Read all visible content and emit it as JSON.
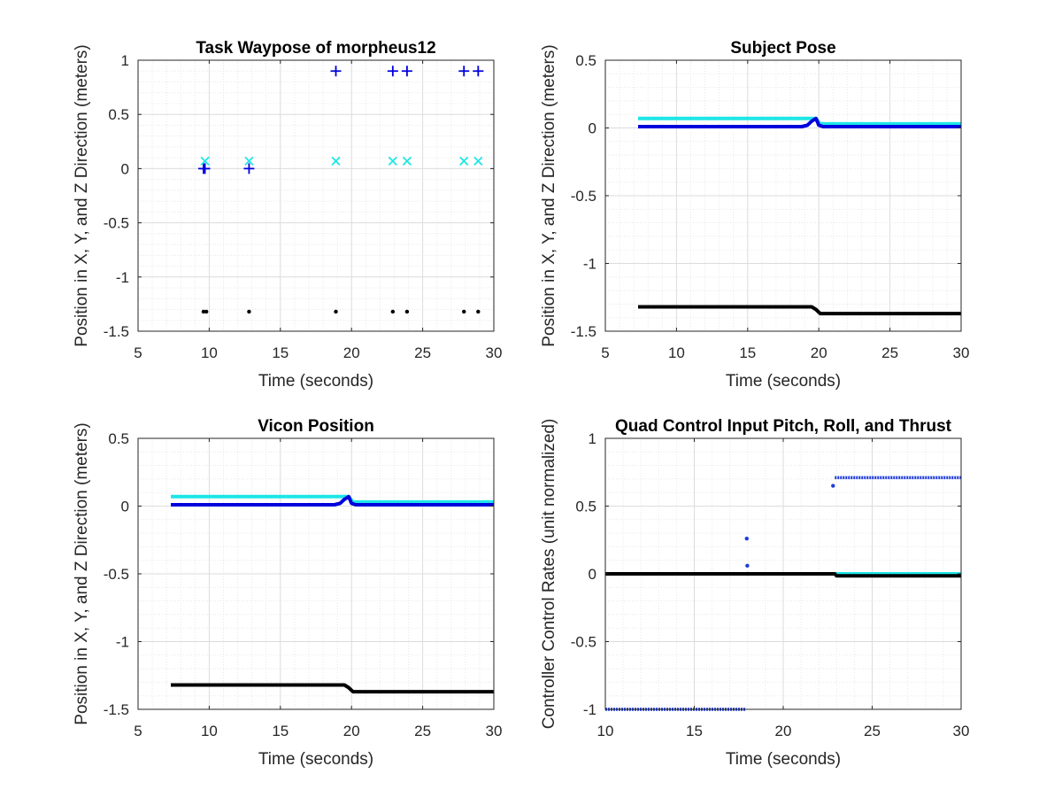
{
  "colors": {
    "axis": "#262626",
    "grid_major": "#dcdcdc",
    "grid_minor": "#e8e8e8",
    "cyan": "#1ee6e6",
    "blue": "#0000dc",
    "blue_points": "#1e3cdc",
    "black": "#000000"
  },
  "chart_data": [
    {
      "type": "scatter",
      "title": "Task Waypose of morpheus12",
      "xlabel": "Time (seconds)",
      "ylabel": "Position in X, Y, and Z Direction (meters)",
      "xlim": [
        5,
        30
      ],
      "ylim": [
        -1.5,
        1
      ],
      "xticks": [
        "5",
        "10",
        "15",
        "20",
        "25",
        "30"
      ],
      "yticks": [
        "1",
        "0.5",
        "0",
        "-0.5",
        "-1",
        "-1.5"
      ],
      "grid": true,
      "series": [
        {
          "marker": "+",
          "color": "blue",
          "x": [
            9.6,
            9.7,
            12.8,
            18.9,
            22.9,
            23.9,
            27.9,
            28.9
          ],
          "y": [
            0.0,
            0.0,
            0.0,
            0.9,
            0.9,
            0.9,
            0.9,
            0.9
          ]
        },
        {
          "marker": "x",
          "color": "cyan",
          "x": [
            9.7,
            12.8,
            18.9,
            22.9,
            23.9,
            27.9,
            28.9
          ],
          "y": [
            0.07,
            0.07,
            0.07,
            0.07,
            0.07,
            0.07,
            0.07
          ]
        },
        {
          "marker": ".",
          "color": "black",
          "x": [
            9.6,
            9.8,
            12.8,
            18.9,
            22.9,
            23.9,
            27.9,
            28.9
          ],
          "y": [
            -1.32,
            -1.32,
            -1.32,
            -1.32,
            -1.32,
            -1.32,
            -1.32,
            -1.32
          ]
        }
      ]
    },
    {
      "type": "line",
      "title": "Subject Pose",
      "xlabel": "Time (seconds)",
      "ylabel": "Position in X, Y, and Z Direction (meters)",
      "xlim": [
        5,
        30
      ],
      "ylim": [
        -1.5,
        0.5
      ],
      "xticks": [
        "5",
        "10",
        "15",
        "20",
        "25",
        "30"
      ],
      "yticks": [
        "0.5",
        "0",
        "-0.5",
        "-1",
        "-1.5"
      ],
      "grid": true,
      "series": [
        {
          "color": "cyan",
          "x": [
            7.3,
            19.5,
            19.8,
            20.1,
            30
          ],
          "y": [
            0.07,
            0.07,
            0.07,
            0.03,
            0.03
          ]
        },
        {
          "color": "blue",
          "x": [
            7.3,
            18.8,
            19.2,
            19.5,
            19.8,
            20.0,
            20.3,
            30
          ],
          "y": [
            0.01,
            0.01,
            0.02,
            0.05,
            0.07,
            0.02,
            0.01,
            0.01
          ]
        },
        {
          "color": "black",
          "x": [
            7.3,
            19.0,
            19.5,
            19.8,
            20.1,
            30
          ],
          "y": [
            -1.32,
            -1.32,
            -1.32,
            -1.34,
            -1.37,
            -1.37
          ]
        }
      ]
    },
    {
      "type": "line",
      "title": "Vicon Position",
      "xlabel": "Time (seconds)",
      "ylabel": "Position in X, Y, and Z Direction (meters)",
      "xlim": [
        5,
        30
      ],
      "ylim": [
        -1.5,
        0.5
      ],
      "xticks": [
        "5",
        "10",
        "15",
        "20",
        "25",
        "30"
      ],
      "yticks": [
        "0.5",
        "0",
        "-0.5",
        "-1",
        "-1.5"
      ],
      "grid": true,
      "series": [
        {
          "color": "cyan",
          "x": [
            7.3,
            19.5,
            19.8,
            20.1,
            30
          ],
          "y": [
            0.07,
            0.07,
            0.07,
            0.03,
            0.03
          ]
        },
        {
          "color": "blue",
          "x": [
            7.3,
            18.8,
            19.2,
            19.5,
            19.8,
            20.0,
            20.3,
            30
          ],
          "y": [
            0.01,
            0.01,
            0.02,
            0.05,
            0.07,
            0.02,
            0.01,
            0.01
          ]
        },
        {
          "color": "black",
          "x": [
            7.3,
            19.0,
            19.5,
            19.8,
            20.1,
            30
          ],
          "y": [
            -1.32,
            -1.32,
            -1.32,
            -1.34,
            -1.37,
            -1.37
          ]
        }
      ]
    },
    {
      "type": "scatter",
      "title": "Quad Control Input Pitch, Roll, and Thrust",
      "xlabel": "Time (seconds)",
      "ylabel": "Controller Control Rates (unit normalized)",
      "xlim": [
        10,
        30
      ],
      "ylim": [
        -1,
        1
      ],
      "xticks": [
        "10",
        "15",
        "20",
        "25",
        "30"
      ],
      "yticks": [
        "1",
        "0.5",
        "0",
        "-0.5",
        "-1"
      ],
      "grid": true,
      "series": [
        {
          "color": "cyan",
          "style": "line",
          "x": [
            10,
            22.9,
            30
          ],
          "y": [
            0,
            0,
            0
          ]
        },
        {
          "color": "blue_points",
          "style": "segments",
          "segments": [
            {
              "x": [
                10,
                17.9
              ],
              "y": [
                -1,
                -1
              ]
            },
            {
              "x": [
                22.9,
                30
              ],
              "y": [
                0.71,
                0.71
              ]
            }
          ],
          "points": {
            "x": [
              17.95,
              17.98,
              18.0,
              22.8
            ],
            "y": [
              0.26,
              0.06,
              0.0,
              0.65
            ]
          }
        },
        {
          "color": "black",
          "style": "line",
          "x": [
            10,
            22.9,
            23.0,
            30
          ],
          "y": [
            0,
            0,
            -0.015,
            -0.015
          ]
        }
      ]
    }
  ]
}
